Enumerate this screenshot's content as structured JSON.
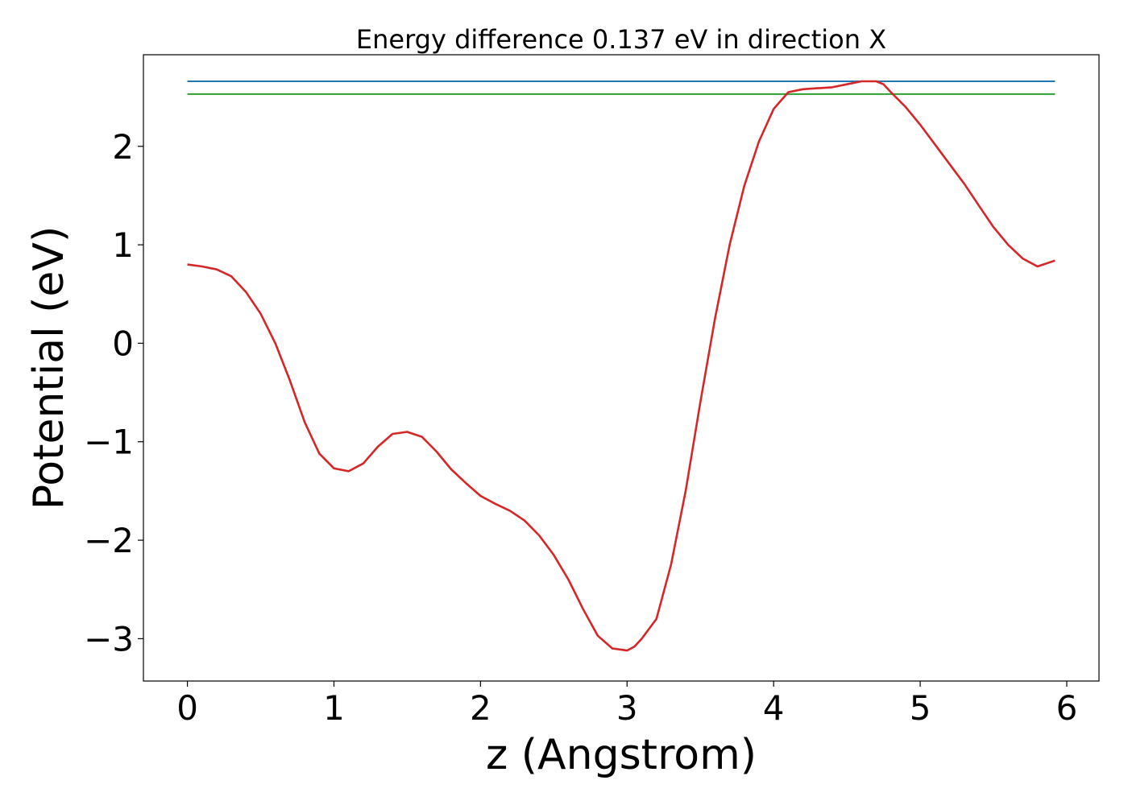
{
  "chart_data": {
    "type": "line",
    "title": "Energy difference 0.137 eV in direction X",
    "xlabel": "z (Angstrom)",
    "ylabel": "Potential (eV)",
    "xlim": [
      -0.3,
      6.22
    ],
    "ylim": [
      -3.43,
      2.93
    ],
    "grid": false,
    "x_ticks": [
      0,
      1,
      2,
      3,
      4,
      5,
      6
    ],
    "x_tick_labels": [
      "0",
      "1",
      "2",
      "3",
      "4",
      "5",
      "6"
    ],
    "y_ticks": [
      -3,
      -2,
      -1,
      0,
      1,
      2
    ],
    "y_tick_labels": [
      "−3",
      "−2",
      "−1",
      "0",
      "1",
      "2"
    ],
    "hlines": [
      {
        "y": 2.66,
        "x_range": [
          0,
          5.92
        ],
        "color": "#1f77b4"
      },
      {
        "y": 2.53,
        "x_range": [
          0,
          5.92
        ],
        "color": "#2ca02c"
      }
    ],
    "series": [
      {
        "color": "#d62728",
        "x": [
          0,
          0.1,
          0.2,
          0.3,
          0.4,
          0.5,
          0.6,
          0.7,
          0.8,
          0.9,
          1.0,
          1.1,
          1.2,
          1.3,
          1.4,
          1.5,
          1.6,
          1.7,
          1.8,
          1.9,
          2.0,
          2.1,
          2.2,
          2.3,
          2.4,
          2.5,
          2.6,
          2.7,
          2.8,
          2.9,
          3.0,
          3.05,
          3.1,
          3.2,
          3.3,
          3.4,
          3.5,
          3.6,
          3.7,
          3.8,
          3.9,
          4.0,
          4.1,
          4.2,
          4.3,
          4.4,
          4.5,
          4.6,
          4.7,
          4.75,
          4.8,
          4.9,
          5.0,
          5.1,
          5.2,
          5.3,
          5.4,
          5.5,
          5.6,
          5.7,
          5.8,
          5.92
        ],
        "y": [
          0.8,
          0.78,
          0.75,
          0.68,
          0.52,
          0.3,
          0.0,
          -0.38,
          -0.8,
          -1.12,
          -1.27,
          -1.3,
          -1.22,
          -1.05,
          -0.92,
          -0.9,
          -0.95,
          -1.1,
          -1.28,
          -1.42,
          -1.55,
          -1.63,
          -1.7,
          -1.8,
          -1.95,
          -2.15,
          -2.4,
          -2.7,
          -2.97,
          -3.1,
          -3.12,
          -3.08,
          -3.0,
          -2.8,
          -2.25,
          -1.5,
          -0.6,
          0.25,
          1.0,
          1.6,
          2.05,
          2.38,
          2.55,
          2.58,
          2.59,
          2.6,
          2.63,
          2.66,
          2.66,
          2.63,
          2.55,
          2.4,
          2.22,
          2.02,
          1.82,
          1.62,
          1.4,
          1.18,
          1.0,
          0.86,
          0.78,
          0.84
        ]
      }
    ]
  }
}
